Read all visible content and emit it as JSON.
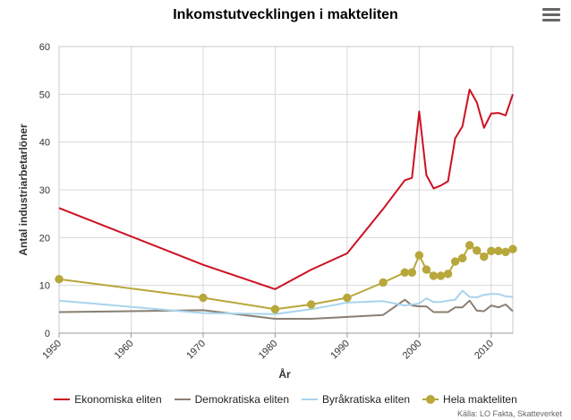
{
  "chart_data": {
    "type": "line",
    "title": "Inkomstutvecklingen i makteliten",
    "xlabel": "År",
    "ylabel": "Antal industriarbetarlöner",
    "xlim": [
      1950,
      2013
    ],
    "ylim": [
      0,
      60
    ],
    "x_ticks": [
      "1950",
      "1960",
      "1970",
      "1980",
      "1990",
      "2000",
      "2010"
    ],
    "x_tick_values": [
      1950,
      1960,
      1970,
      1980,
      1990,
      2000,
      2010
    ],
    "y_ticks": [
      "0",
      "10",
      "20",
      "30",
      "40",
      "50",
      "60"
    ],
    "y_tick_values": [
      0,
      10,
      20,
      30,
      40,
      50,
      60
    ],
    "grid": true,
    "legend_position": "bottom",
    "series": [
      {
        "name": "Ekonomiska eliten",
        "color": "#cc1122",
        "markers": false,
        "x": [
          1950,
          1970,
          1980,
          1985,
          1990,
          1995,
          1998,
          1999,
          2000,
          2001,
          2002,
          2003,
          2004,
          2005,
          2006,
          2007,
          2008,
          2009,
          2010,
          2011,
          2012,
          2013
        ],
        "y": [
          26.2,
          14.3,
          9.2,
          13.3,
          16.7,
          26.0,
          32.0,
          32.5,
          46.4,
          33.1,
          30.3,
          30.9,
          31.8,
          40.8,
          43.3,
          51.0,
          48.3,
          43.0,
          46.0,
          46.1,
          45.6,
          50.0
        ]
      },
      {
        "name": "Demokratiska eliten",
        "color": "#8a7f72",
        "markers": false,
        "x": [
          1950,
          1970,
          1980,
          1985,
          1990,
          1995,
          1998,
          1999,
          2000,
          2001,
          2002,
          2003,
          2004,
          2005,
          2006,
          2007,
          2008,
          2009,
          2010,
          2011,
          2012,
          2013
        ],
        "y": [
          4.4,
          4.8,
          3.0,
          3.0,
          3.4,
          3.8,
          7.0,
          5.8,
          5.6,
          5.6,
          4.4,
          4.4,
          4.4,
          5.4,
          5.4,
          6.8,
          4.7,
          4.6,
          5.8,
          5.4,
          6.0,
          4.6
        ]
      },
      {
        "name": "Byråkratiska eliten",
        "color": "#a8d4ec",
        "markers": false,
        "x": [
          1950,
          1970,
          1980,
          1985,
          1990,
          1995,
          1998,
          1999,
          2000,
          2001,
          2002,
          2003,
          2004,
          2005,
          2006,
          2007,
          2008,
          2009,
          2010,
          2011,
          2012,
          2013
        ],
        "y": [
          6.8,
          4.2,
          4.0,
          5.0,
          6.4,
          6.7,
          5.8,
          6.0,
          6.2,
          7.3,
          6.5,
          6.5,
          6.8,
          7.0,
          8.9,
          7.6,
          7.5,
          8.0,
          8.2,
          8.2,
          7.7,
          7.6
        ]
      },
      {
        "name": "Hela makteliten",
        "color": "#b8a73a",
        "markers": true,
        "x": [
          1950,
          1970,
          1980,
          1985,
          1990,
          1995,
          1998,
          1999,
          2000,
          2001,
          2002,
          2003,
          2004,
          2005,
          2006,
          2007,
          2008,
          2009,
          2010,
          2011,
          2012,
          2013
        ],
        "y": [
          11.3,
          7.4,
          5.0,
          6.0,
          7.4,
          10.6,
          12.7,
          12.7,
          16.3,
          13.3,
          12.0,
          12.0,
          12.4,
          15.0,
          15.7,
          18.4,
          17.3,
          16.0,
          17.2,
          17.2,
          17.0,
          17.6
        ]
      }
    ]
  },
  "credits": "Källa: LO Fakta, Skatteverket"
}
